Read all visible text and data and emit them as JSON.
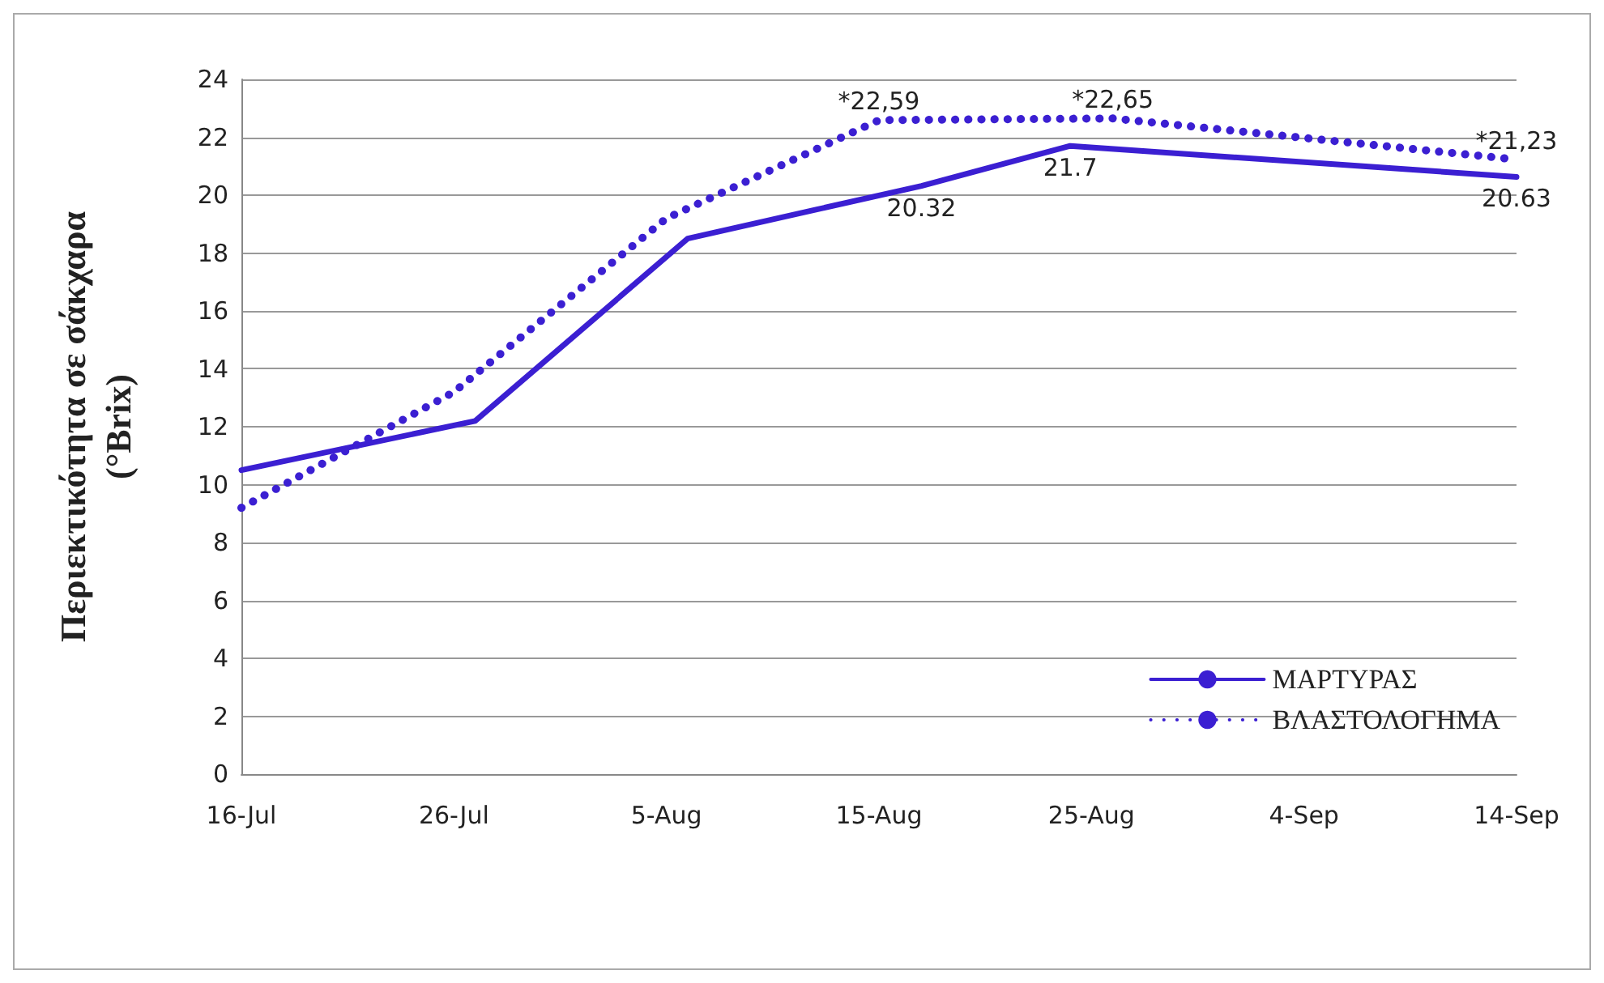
{
  "chart_data": {
    "type": "line",
    "ylabel": "Περιεκτικότητα σε σάκχαρα\n(°Brix)",
    "xlim": [
      "--07-16",
      "--09-14"
    ],
    "xticks": [
      {
        "value": "--07-16",
        "label": "16-Jul"
      },
      {
        "value": "--07-26",
        "label": "26-Jul"
      },
      {
        "value": "--08-05",
        "label": "5-Aug"
      },
      {
        "value": "--08-15",
        "label": "15-Aug"
      },
      {
        "value": "--08-25",
        "label": "25-Aug"
      },
      {
        "value": "--09-04",
        "label": "4-Sep"
      },
      {
        "value": "--09-14",
        "label": "14-Sep"
      }
    ],
    "ylim": [
      0,
      24
    ],
    "yticks": [
      0,
      2,
      4,
      6,
      8,
      10,
      12,
      14,
      16,
      18,
      20,
      22,
      24
    ],
    "grid": "y",
    "legend": "bottom right",
    "marker": "none",
    "series": [
      {
        "name": "ΜΑΡΤΥΡΑΣ",
        "color": "#3b1fd2",
        "line_style": "solid",
        "x": [
          "--07-16",
          "--07-27",
          "--08-06",
          "--08-17",
          "--08-24",
          "--09-14"
        ],
        "values": [
          10.5,
          12.2,
          18.5,
          20.32,
          21.7,
          20.63
        ],
        "value_labels": [
          null,
          null,
          null,
          "20.32",
          "21.7",
          "20.63"
        ]
      },
      {
        "name": "ΒΛΑΣΤΟΛΟΓΗΜΑ",
        "color": "#3b1fd2",
        "line_style": "dotted",
        "x": [
          "--07-16",
          "--07-26",
          "--08-05",
          "--08-15",
          "--08-26",
          "--09-14"
        ],
        "values": [
          9.2,
          13.2,
          19.2,
          22.59,
          22.65,
          21.23
        ],
        "value_labels": [
          null,
          null,
          null,
          "*22,59",
          "*22,65",
          "*21,23"
        ]
      }
    ]
  }
}
